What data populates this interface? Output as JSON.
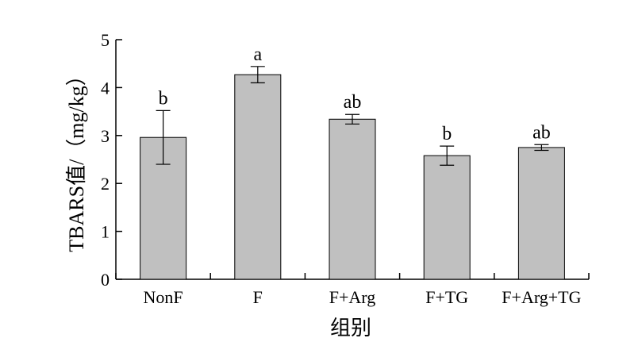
{
  "chart_data": {
    "type": "bar",
    "title": "",
    "xlabel": "组别",
    "ylabel": "TBARS值/（mg/kg）",
    "ylim": [
      0,
      5
    ],
    "yticks": [
      "0",
      "1",
      "2",
      "3",
      "4",
      "5"
    ],
    "categories": [
      "NonF",
      "F",
      "F+Arg",
      "F+TG",
      "F+Arg+TG"
    ],
    "values": [
      2.96,
      4.27,
      3.34,
      2.58,
      2.75
    ],
    "errors": [
      0.56,
      0.17,
      0.1,
      0.2,
      0.06
    ],
    "significance": [
      "b",
      "a",
      "ab",
      "b",
      "ab"
    ],
    "bar_color": "#c0c0c0",
    "grid": false,
    "legend": "none"
  }
}
